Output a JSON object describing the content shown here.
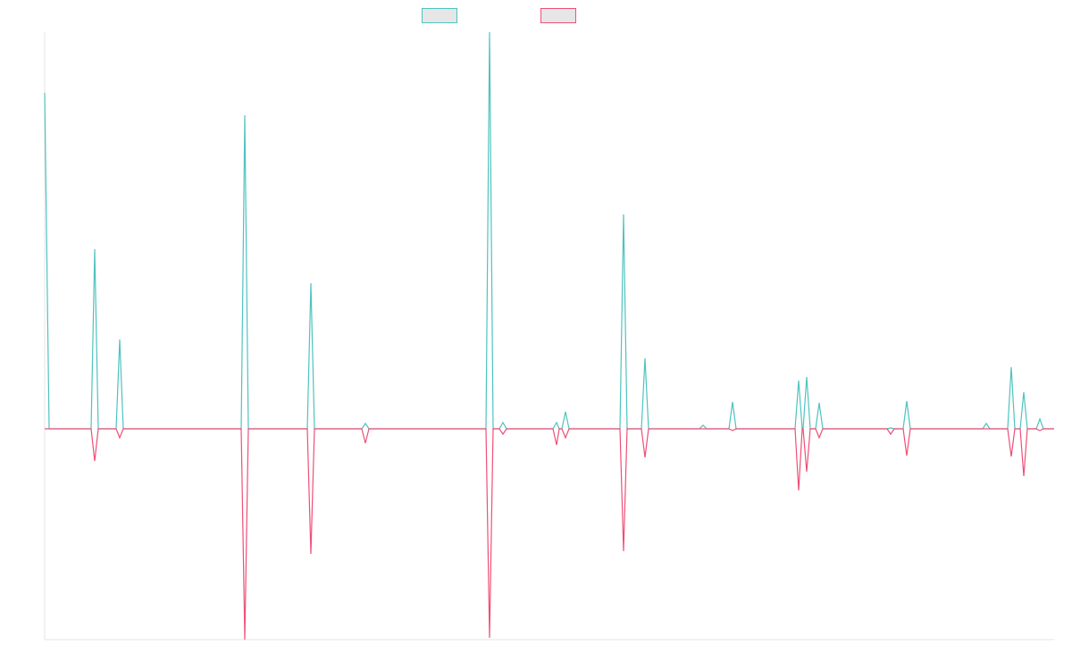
{
  "chart_data": {
    "type": "line",
    "title": "",
    "xlabel": "",
    "ylabel": "",
    "x_range": [
      0,
      1130
    ],
    "y_range": [
      -236,
      444
    ],
    "grid": false,
    "legend": "top-center",
    "series": [
      {
        "color": "#4ec3bf",
        "fill": "#e6e6e6",
        "points": [
          [
            0,
            376
          ],
          [
            5,
            0
          ],
          [
            52,
            0
          ],
          [
            56,
            201
          ],
          [
            60,
            0
          ],
          [
            80,
            0
          ],
          [
            84,
            100
          ],
          [
            88,
            0
          ],
          [
            220,
            0
          ],
          [
            224,
            351
          ],
          [
            228,
            0
          ],
          [
            294,
            0
          ],
          [
            298,
            163
          ],
          [
            302,
            0
          ],
          [
            355,
            0
          ],
          [
            359,
            6
          ],
          [
            363,
            0
          ],
          [
            494,
            0
          ],
          [
            498,
            444
          ],
          [
            502,
            0
          ],
          [
            509,
            0
          ],
          [
            513,
            7
          ],
          [
            517,
            0
          ],
          [
            569,
            0
          ],
          [
            573,
            7
          ],
          [
            576,
            0
          ],
          [
            579,
            0
          ],
          [
            583,
            19
          ],
          [
            587,
            0
          ],
          [
            644,
            0
          ],
          [
            648,
            240
          ],
          [
            652,
            0
          ],
          [
            668,
            0
          ],
          [
            672,
            79
          ],
          [
            676,
            0
          ],
          [
            733,
            0
          ],
          [
            737,
            4
          ],
          [
            741,
            0
          ],
          [
            766,
            0
          ],
          [
            770,
            30
          ],
          [
            774,
            0
          ],
          [
            840,
            0
          ],
          [
            844,
            54
          ],
          [
            848,
            0
          ],
          [
            849,
            0
          ],
          [
            853,
            58
          ],
          [
            857,
            0
          ],
          [
            863,
            0
          ],
          [
            867,
            29
          ],
          [
            871,
            0
          ],
          [
            943,
            0
          ],
          [
            947,
            1
          ],
          [
            951,
            0
          ],
          [
            961,
            0
          ],
          [
            965,
            31
          ],
          [
            969,
            0
          ],
          [
            1050,
            0
          ],
          [
            1054,
            6
          ],
          [
            1058,
            0
          ],
          [
            1078,
            0
          ],
          [
            1082,
            69
          ],
          [
            1086,
            0
          ],
          [
            1092,
            0
          ],
          [
            1096,
            41
          ],
          [
            1100,
            0
          ],
          [
            1110,
            0
          ],
          [
            1114,
            11
          ],
          [
            1118,
            0
          ],
          [
            1130,
            0
          ]
        ]
      },
      {
        "color": "#ef4f77",
        "fill": "#e6e6e6",
        "points": [
          [
            0,
            0
          ],
          [
            52,
            0
          ],
          [
            56,
            -36
          ],
          [
            60,
            0
          ],
          [
            80,
            0
          ],
          [
            84,
            -10
          ],
          [
            88,
            0
          ],
          [
            220,
            0
          ],
          [
            224,
            -236
          ],
          [
            228,
            0
          ],
          [
            294,
            0
          ],
          [
            298,
            -140
          ],
          [
            302,
            0
          ],
          [
            355,
            0
          ],
          [
            359,
            -16
          ],
          [
            363,
            0
          ],
          [
            494,
            0
          ],
          [
            498,
            -234
          ],
          [
            502,
            0
          ],
          [
            509,
            0
          ],
          [
            513,
            -6
          ],
          [
            517,
            0
          ],
          [
            569,
            0
          ],
          [
            573,
            -18
          ],
          [
            576,
            0
          ],
          [
            579,
            0
          ],
          [
            583,
            -10
          ],
          [
            587,
            0
          ],
          [
            644,
            0
          ],
          [
            648,
            -137
          ],
          [
            652,
            0
          ],
          [
            668,
            0
          ],
          [
            672,
            -32
          ],
          [
            676,
            0
          ],
          [
            766,
            0
          ],
          [
            770,
            -2
          ],
          [
            774,
            0
          ],
          [
            840,
            0
          ],
          [
            844,
            -69
          ],
          [
            848,
            0
          ],
          [
            849,
            0
          ],
          [
            853,
            -48
          ],
          [
            857,
            0
          ],
          [
            863,
            0
          ],
          [
            867,
            -10
          ],
          [
            871,
            0
          ],
          [
            943,
            0
          ],
          [
            947,
            -6
          ],
          [
            951,
            0
          ],
          [
            961,
            0
          ],
          [
            965,
            -30
          ],
          [
            969,
            0
          ],
          [
            1078,
            0
          ],
          [
            1082,
            -31
          ],
          [
            1086,
            0
          ],
          [
            1092,
            0
          ],
          [
            1096,
            -53
          ],
          [
            1100,
            0
          ],
          [
            1110,
            0
          ],
          [
            1114,
            -2
          ],
          [
            1118,
            0
          ],
          [
            1130,
            0
          ]
        ]
      }
    ]
  }
}
